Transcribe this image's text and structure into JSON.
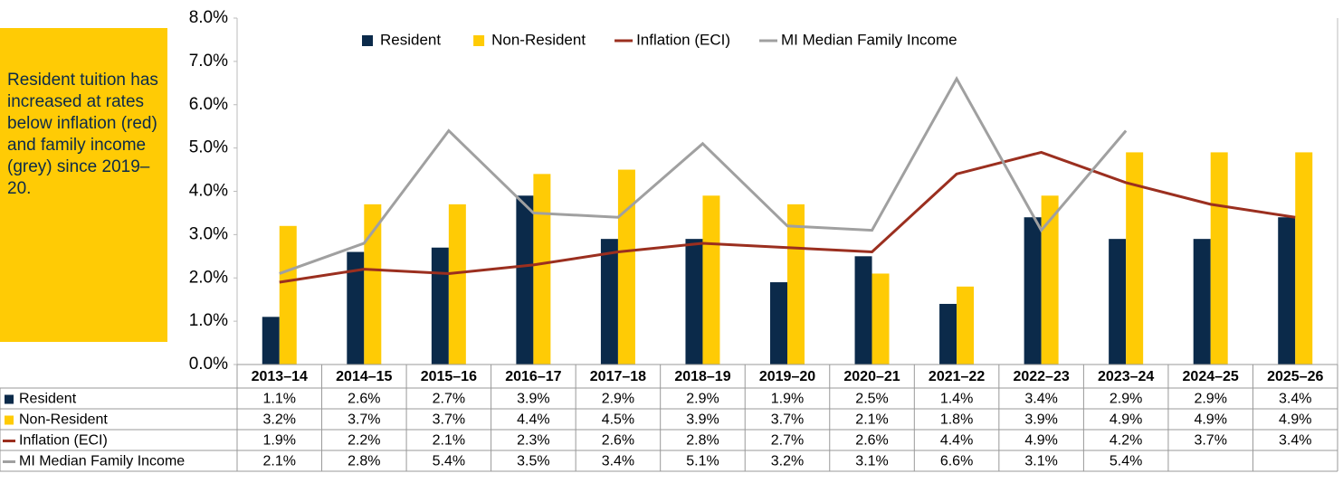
{
  "chart_data": {
    "type": "combo",
    "annotation": "Resident tuition has increased at rates below inflation (red) and family income (grey) since 2019–20.",
    "categories": [
      "2013–14",
      "2014–15",
      "2015–16",
      "2016–17",
      "2017–18",
      "2018–19",
      "2019–20",
      "2020–21",
      "2021–22",
      "2022–23",
      "2023–24",
      "2024–25",
      "2025–26"
    ],
    "series": [
      {
        "name": "Resident",
        "type": "bar",
        "color": "#0b2a4a",
        "values": [
          1.1,
          2.6,
          2.7,
          3.9,
          2.9,
          2.9,
          1.9,
          2.5,
          1.4,
          3.4,
          2.9,
          2.9,
          3.4
        ],
        "value_labels": [
          "1.1%",
          "2.6%",
          "2.7%",
          "3.9%",
          "2.9%",
          "2.9%",
          "1.9%",
          "2.5%",
          "1.4%",
          "3.4%",
          "2.9%",
          "2.9%",
          "3.4%"
        ]
      },
      {
        "name": "Non-Resident",
        "type": "bar",
        "color": "#ffcb05",
        "values": [
          3.2,
          3.7,
          3.7,
          4.4,
          4.5,
          3.9,
          3.7,
          2.1,
          1.8,
          3.9,
          4.9,
          4.9,
          4.9
        ],
        "value_labels": [
          "3.2%",
          "3.7%",
          "3.7%",
          "4.4%",
          "4.5%",
          "3.9%",
          "3.7%",
          "2.1%",
          "1.8%",
          "3.9%",
          "4.9%",
          "4.9%",
          "4.9%"
        ]
      },
      {
        "name": "Inflation (ECI)",
        "type": "line",
        "color": "#9b2f1f",
        "values": [
          1.9,
          2.2,
          2.1,
          2.3,
          2.6,
          2.8,
          2.7,
          2.6,
          4.4,
          4.9,
          4.2,
          3.7,
          3.4
        ],
        "value_labels": [
          "1.9%",
          "2.2%",
          "2.1%",
          "2.3%",
          "2.6%",
          "2.8%",
          "2.7%",
          "2.6%",
          "4.4%",
          "4.9%",
          "4.2%",
          "3.7%",
          "3.4%"
        ]
      },
      {
        "name": "MI Median Family Income",
        "type": "line",
        "color": "#a0a0a0",
        "values": [
          2.1,
          2.8,
          5.4,
          3.5,
          3.4,
          5.1,
          3.2,
          3.1,
          6.6,
          3.1,
          5.4,
          null,
          null
        ],
        "value_labels": [
          "2.1%",
          "2.8%",
          "5.4%",
          "3.5%",
          "3.4%",
          "5.1%",
          "3.2%",
          "3.1%",
          "6.6%",
          "3.1%",
          "5.4%",
          null,
          null
        ]
      }
    ],
    "ylim": [
      0,
      8
    ],
    "yticks": [
      {
        "value": 0,
        "label": "0.0%"
      },
      {
        "value": 1,
        "label": "1.0%"
      },
      {
        "value": 2,
        "label": "2.0%"
      },
      {
        "value": 3,
        "label": "3.0%"
      },
      {
        "value": 4,
        "label": "4.0%"
      },
      {
        "value": 5,
        "label": "5.0%"
      },
      {
        "value": 6,
        "label": "6.0%"
      },
      {
        "value": 7,
        "label": "7.0%"
      },
      {
        "value": 8,
        "label": "8.0%"
      }
    ],
    "legend": "top"
  }
}
